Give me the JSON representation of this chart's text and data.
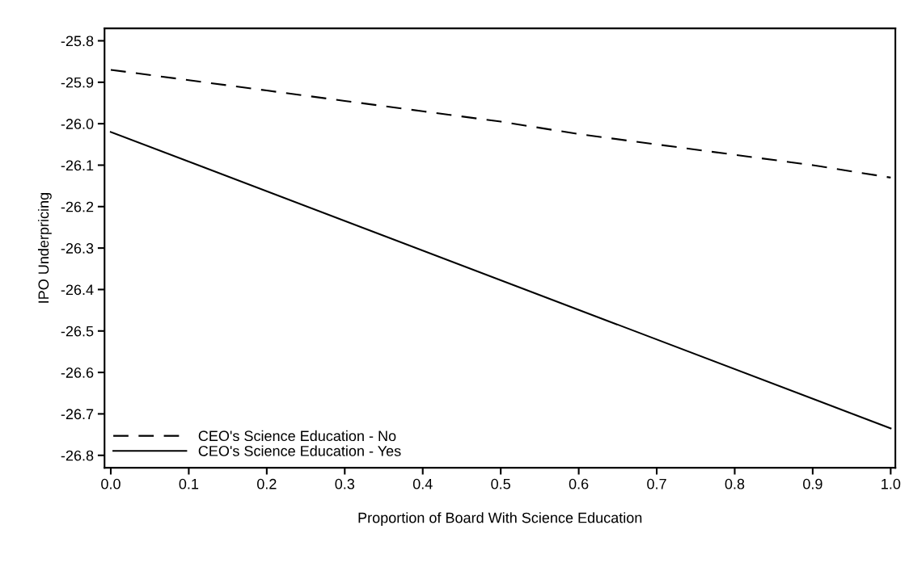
{
  "chart_data": {
    "type": "line",
    "xlabel": "Proportion of Board With Science Education",
    "ylabel": "IPO Underpricing",
    "series": [
      {
        "name": "CEO's Science Education - No",
        "color": "#000000",
        "line_style": "dashed",
        "x": [
          0,
          0.1,
          0.2,
          0.3,
          0.4,
          0.5,
          0.6,
          0.7,
          0.8,
          0.9,
          1.0
        ],
        "values": [
          -25.87,
          -25.895,
          -25.92,
          -25.945,
          -25.97,
          -25.995,
          -26.025,
          -26.05,
          -26.075,
          -26.1,
          -26.13
        ]
      },
      {
        "name": "CEO's Science Education - Yes",
        "color": "#000000",
        "line_style": "solid",
        "x": [
          0,
          1.0
        ],
        "values": [
          -26.02,
          -26.735
        ]
      }
    ],
    "xlim": [
      -0.008,
      1.006
    ],
    "ylim": [
      -26.83,
      -25.77
    ],
    "xticks": [
      {
        "value": 0,
        "label": "0.0"
      },
      0.1,
      0.2,
      0.3,
      0.4,
      0.5,
      0.6,
      0.7,
      0.8,
      0.9,
      {
        "value": 1.0,
        "label": "1.0"
      }
    ],
    "yticks": [
      -26.8,
      -26.7,
      -26.6,
      -26.5,
      -26.4,
      -26.3,
      -26.2,
      -26.1,
      {
        "value": -26.0,
        "label": "-26.0"
      },
      -25.9,
      -25.8
    ],
    "legend": "bottom left",
    "grid": false,
    "marker": "none"
  }
}
